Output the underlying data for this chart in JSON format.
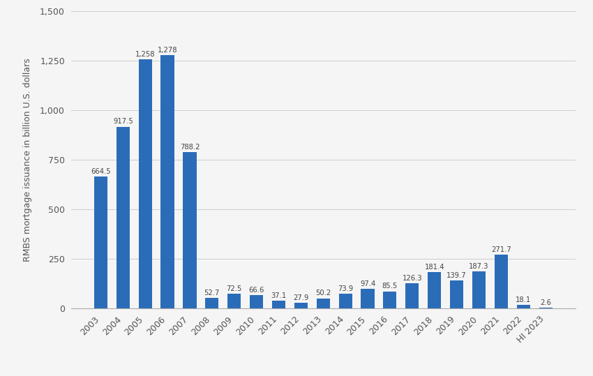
{
  "categories": [
    "2003",
    "2004",
    "2005",
    "2006",
    "2007",
    "2008",
    "2009",
    "2010",
    "2011",
    "2012",
    "2013",
    "2014",
    "2015",
    "2016",
    "2017",
    "2018",
    "2019",
    "2020",
    "2021",
    "2022",
    "HI 2023"
  ],
  "values": [
    664.5,
    917.5,
    1258.0,
    1278.0,
    788.2,
    52.7,
    72.5,
    66.6,
    37.1,
    27.9,
    50.2,
    73.9,
    97.4,
    85.5,
    126.3,
    181.4,
    139.7,
    187.3,
    271.7,
    18.1,
    2.6
  ],
  "bar_color": "#2b6cb8",
  "ylabel": "RMBS mortgage issuance in billion U.S. dollars",
  "ylim": [
    0,
    1500
  ],
  "yticks": [
    0,
    250,
    500,
    750,
    1000,
    1250,
    1500
  ],
  "ytick_labels": [
    "0",
    "250",
    "500",
    "750",
    "1,000",
    "1,250",
    "1,500"
  ],
  "background_color": "#f5f5f5",
  "grid_color": "#cccccc",
  "ylabel_fontsize": 9,
  "tick_fontsize": 9,
  "bar_label_fontsize": 7.2,
  "bar_label_color": "#444444"
}
